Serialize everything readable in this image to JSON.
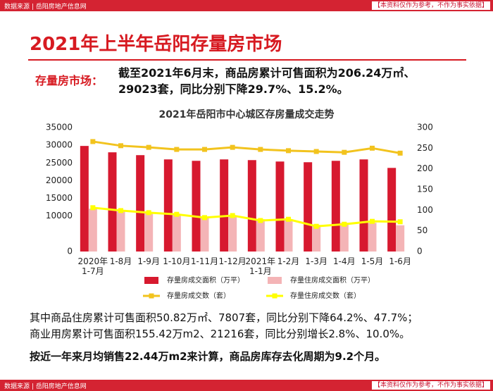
{
  "header": {
    "source": "数据来源 | 岳阳房地产信息网",
    "note": "【本资料仅作为参考，不作为事实依据】"
  },
  "title": "2021年上半年岳阳存量房市场",
  "intro": {
    "lead": "存量房市场：",
    "lines": [
      "截至2021年6月末，商品房累计可售面积为206.24万㎡、",
      "29023套，同比分别下降29.7%、15.2%。"
    ]
  },
  "chart_data": {
    "type": "bar-line",
    "title": "2021年岳阳市中心城区存房量成交走势",
    "categories": [
      "2020年1-7月",
      "1-8月",
      "1-9月",
      "1-10月",
      "1-11月",
      "1-12月",
      "2021年1-1月",
      "1-2月",
      "1-3月",
      "1-4月",
      "1-5月",
      "1-6月"
    ],
    "series": [
      {
        "name": "存量房成交面积（万平）",
        "type": "bar",
        "color": "#d7192f",
        "values": [
          29800,
          28000,
          27200,
          26000,
          25600,
          26000,
          25800,
          25400,
          25200,
          25600,
          26000,
          23600
        ]
      },
      {
        "name": "存量住房成交面积（万平）",
        "type": "bar",
        "color": "#f4b4b6",
        "values": [
          12100,
          11300,
          10900,
          10300,
          9700,
          9900,
          9100,
          9100,
          7500,
          8100,
          8100,
          7400
        ]
      },
      {
        "name": "存量房成交数（套）",
        "type": "line",
        "axis": "y2",
        "color": "#f2c31e",
        "values": [
          266,
          256,
          252,
          247,
          247,
          252,
          247,
          244,
          242,
          240,
          250,
          238
        ]
      },
      {
        "name": "存量住房成交数（套）",
        "type": "line",
        "axis": "y2",
        "color": "#ffff00",
        "values": [
          106,
          99,
          94,
          90,
          82,
          87,
          75,
          78,
          61,
          66,
          73,
          72
        ]
      }
    ],
    "ylim": [
      0,
      35000
    ],
    "yticks": [
      0,
      10000,
      15000,
      20000,
      25000,
      30000,
      35000
    ],
    "y2lim": [
      0,
      300
    ],
    "y2ticks": [
      0,
      50,
      100,
      150,
      200,
      250,
      300
    ]
  },
  "paragraphs": [
    "其中商品住房累计可售面积50.82万㎡、7807套，同比分别下降64.2%、47.7%；",
    "商业用房累计可售面积155.42万m2、21216套，同比分别增长2.8%、10.0%。",
    "按近一年来月均销售22.44万m2来计算，商品房库存去化周期为9.2个月。"
  ]
}
